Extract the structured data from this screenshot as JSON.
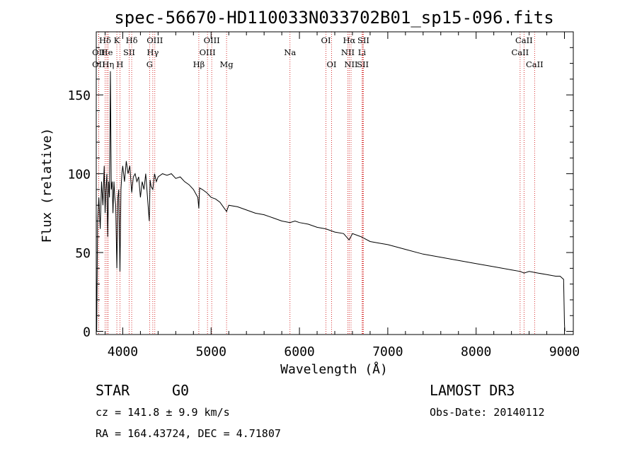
{
  "chart_data": {
    "type": "line",
    "title": "spec-56670-HD110033N033702B01_sp15-096.fits",
    "xlabel": "Wavelength (Å)",
    "ylabel": "Flux (relative)",
    "xlim": [
      3700,
      9100
    ],
    "ylim": [
      -2,
      190
    ],
    "xticks": [
      4000,
      5000,
      6000,
      7000,
      8000,
      9000
    ],
    "yticks": [
      0,
      50,
      100,
      150
    ],
    "series": [
      {
        "name": "flux",
        "x": [
          3700,
          3705,
          3715,
          3730,
          3745,
          3760,
          3775,
          3790,
          3800,
          3810,
          3820,
          3830,
          3840,
          3850,
          3860,
          3870,
          3880,
          3889,
          3900,
          3910,
          3920,
          3933,
          3945,
          3955,
          3968,
          3980,
          3990,
          4000,
          4020,
          4040,
          4060,
          4080,
          4101,
          4120,
          4140,
          4160,
          4180,
          4200,
          4220,
          4240,
          4260,
          4280,
          4300,
          4310,
          4320,
          4340,
          4360,
          4380,
          4400,
          4450,
          4500,
          4550,
          4600,
          4650,
          4700,
          4750,
          4800,
          4850,
          4861,
          4870,
          4900,
          4950,
          5000,
          5050,
          5100,
          5150,
          5175,
          5200,
          5300,
          5400,
          5500,
          5600,
          5700,
          5800,
          5893,
          5950,
          6000,
          6100,
          6200,
          6300,
          6400,
          6500,
          6563,
          6600,
          6700,
          6800,
          6900,
          7000,
          7200,
          7400,
          7600,
          7800,
          8000,
          8200,
          8400,
          8500,
          8542,
          8600,
          8700,
          8800,
          8900,
          8950,
          8990,
          9000,
          9005
        ],
        "y": [
          35,
          0,
          70,
          85,
          65,
          95,
          80,
          105,
          75,
          90,
          100,
          60,
          95,
          85,
          165,
          90,
          95,
          75,
          95,
          85,
          80,
          40,
          85,
          90,
          38,
          90,
          100,
          105,
          95,
          108,
          100,
          105,
          88,
          98,
          100,
          95,
          98,
          85,
          95,
          90,
          100,
          85,
          70,
          96,
          92,
          90,
          100,
          95,
          98,
          100,
          99,
          100,
          97,
          98,
          95,
          93,
          90,
          85,
          78,
          91,
          90,
          88,
          85,
          84,
          82,
          78,
          76,
          80,
          79,
          77,
          75,
          74,
          72,
          70,
          69,
          70,
          69,
          68,
          66,
          65,
          63,
          62,
          58,
          62,
          60,
          57,
          56,
          55,
          52,
          49,
          47,
          45,
          43,
          41,
          39,
          38,
          37,
          38,
          37,
          36,
          35,
          35,
          33,
          5,
          0
        ]
      }
    ],
    "spectral_lines": [
      {
        "label": "Hδ",
        "row": 1,
        "x": 3800
      },
      {
        "label": "OII",
        "row": 2,
        "x": 3727
      },
      {
        "label": "OII",
        "row": 3,
        "x": 3727
      },
      {
        "label": "He",
        "row": 2,
        "x": 3820
      },
      {
        "label": "Hη",
        "row": 3,
        "x": 3835
      },
      {
        "label": "K",
        "row": 1,
        "x": 3933
      },
      {
        "label": "H",
        "row": 3,
        "x": 3968
      },
      {
        "label": "SII",
        "row": 2,
        "x": 4072
      },
      {
        "label": "Hδ",
        "row": 1,
        "x": 4101
      },
      {
        "label": "OIII",
        "row": 1,
        "x": 4363
      },
      {
        "label": "Hγ",
        "row": 2,
        "x": 4340
      },
      {
        "label": "G",
        "row": 3,
        "x": 4304
      },
      {
        "label": "Hβ",
        "row": 3,
        "x": 4861
      },
      {
        "label": "OIII",
        "row": 1,
        "x": 5007
      },
      {
        "label": "OIII",
        "row": 2,
        "x": 4959
      },
      {
        "label": "Mg",
        "row": 3,
        "x": 5175
      },
      {
        "label": "Na",
        "row": 2,
        "x": 5893
      },
      {
        "label": "OI",
        "row": 1,
        "x": 6300
      },
      {
        "label": "OI",
        "row": 3,
        "x": 6364
      },
      {
        "label": "Hα",
        "row": 1,
        "x": 6563
      },
      {
        "label": "SII",
        "row": 1,
        "x": 6724
      },
      {
        "label": "NII",
        "row": 2,
        "x": 6548
      },
      {
        "label": "Li",
        "row": 2,
        "x": 6708
      },
      {
        "label": "NII",
        "row": 3,
        "x": 6584
      },
      {
        "label": "SII",
        "row": 3,
        "x": 6717
      },
      {
        "label": "CaII",
        "row": 1,
        "x": 8542
      },
      {
        "label": "CaII",
        "row": 2,
        "x": 8498
      },
      {
        "label": "CaII",
        "row": 3,
        "x": 8662
      }
    ]
  },
  "info": {
    "class": "STAR",
    "subclass": "G0",
    "survey": "LAMOST DR3",
    "cz": "cz = 141.8 ± 9.9 km/s",
    "obs_date": "Obs-Date: 20140112",
    "coords": "RA = 164.43724, DEC =   4.71807"
  },
  "colors": {
    "line_marker": "#cc0000",
    "spectrum": "#000000"
  }
}
